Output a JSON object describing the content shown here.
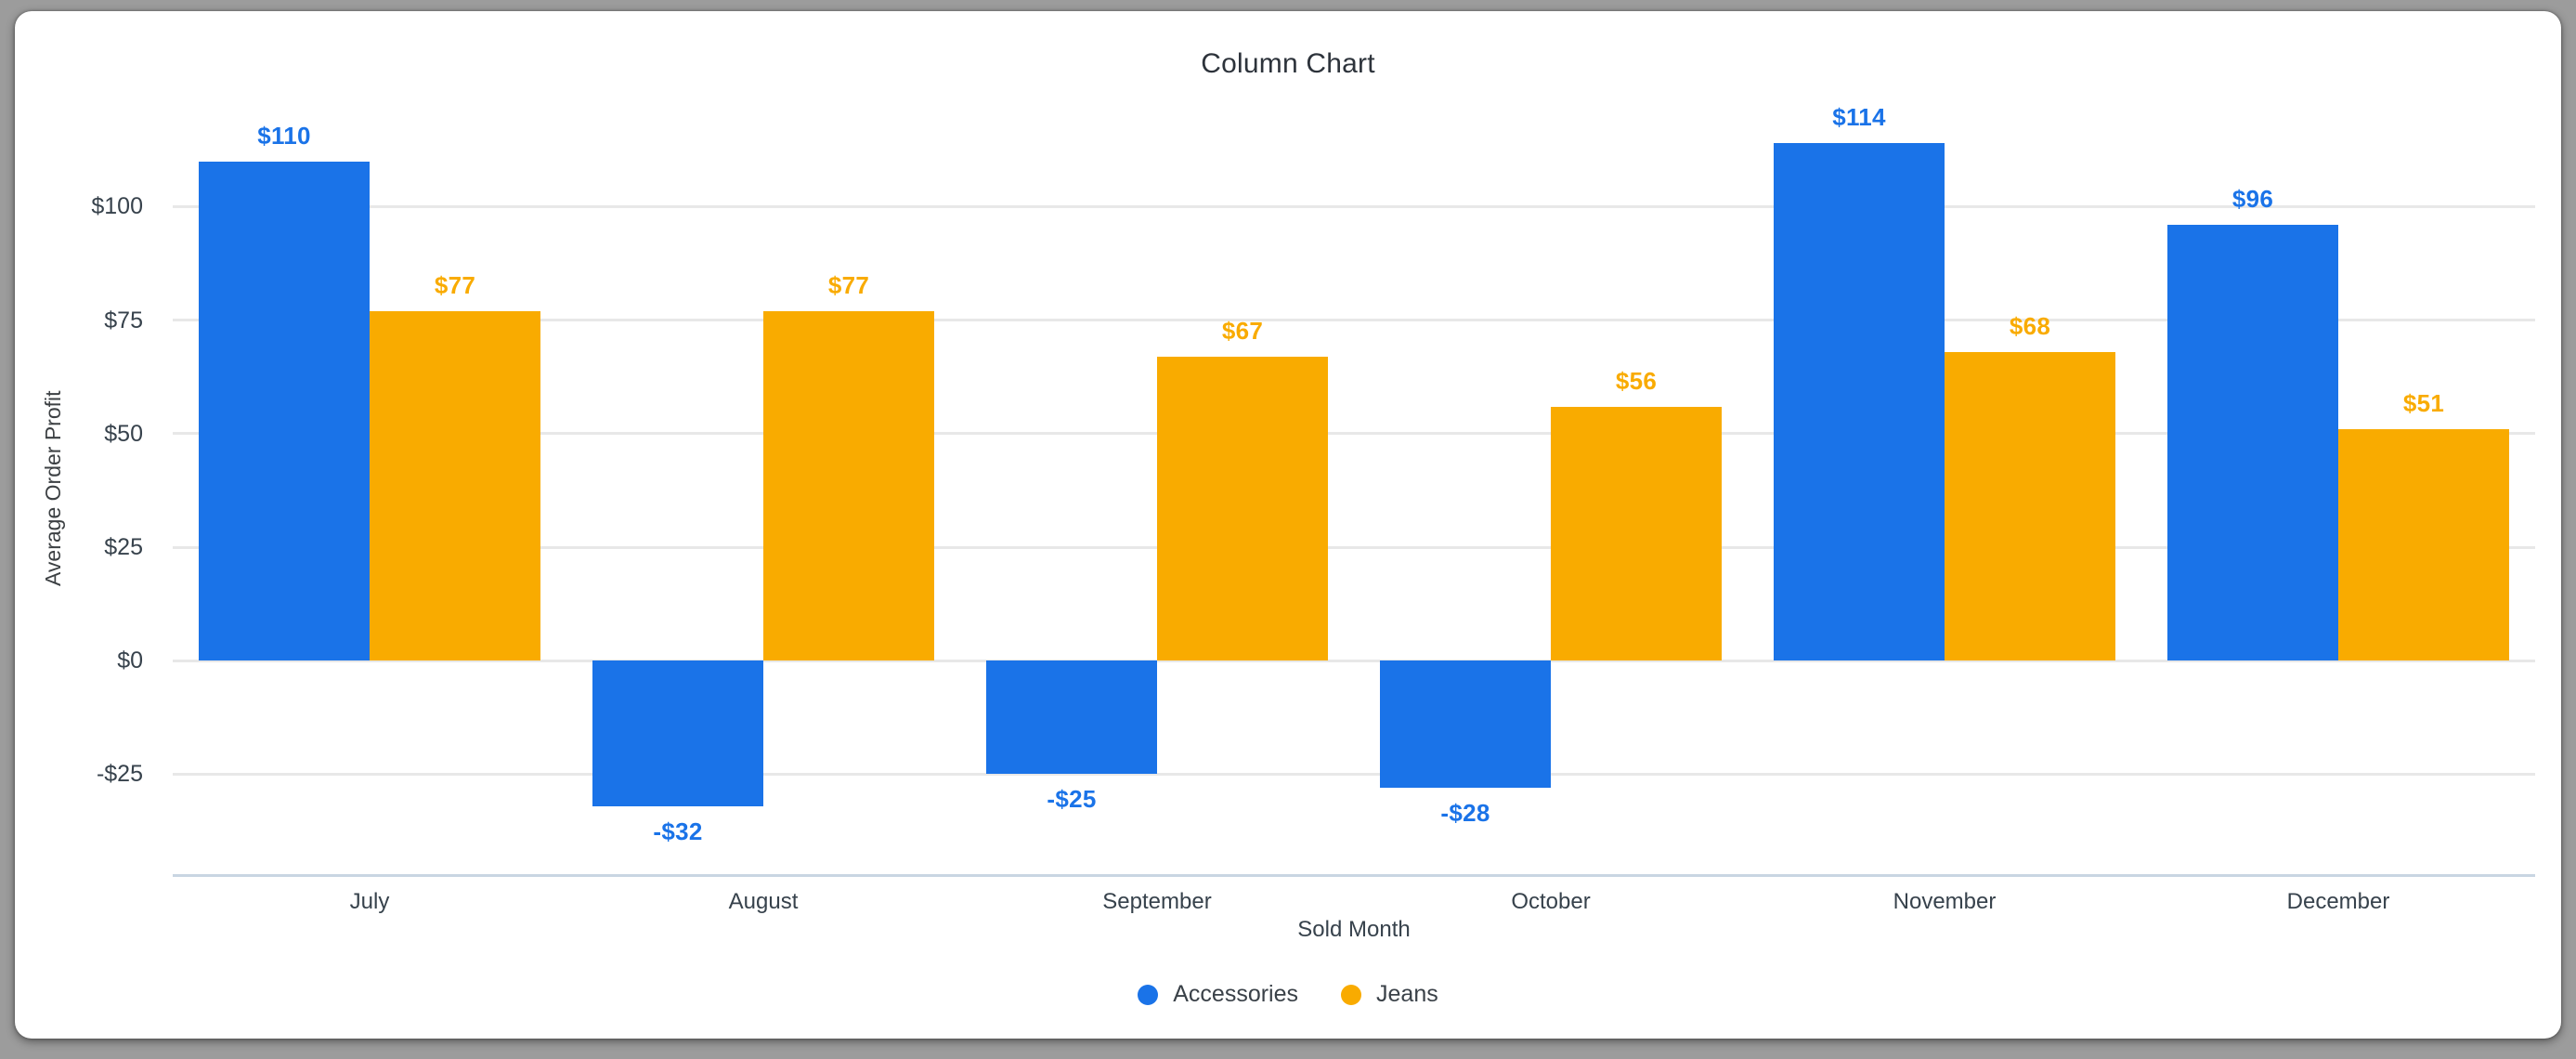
{
  "title": "Column Chart",
  "y_axis": {
    "title": "Average Order Profit",
    "tick_labels": [
      "$100",
      "$75",
      "$50",
      "$25",
      "$0",
      "-$25"
    ]
  },
  "x_axis": {
    "title": "Sold Month"
  },
  "legend": {
    "items": [
      {
        "label": "Accessories",
        "color": "#1a73e8"
      },
      {
        "label": "Jeans",
        "color": "#f9ab00"
      }
    ]
  },
  "chart_data": {
    "type": "bar",
    "title": "Column Chart",
    "xlabel": "Sold Month",
    "ylabel": "Average Order Profit",
    "categories": [
      "July",
      "August",
      "September",
      "October",
      "November",
      "December"
    ],
    "series": [
      {
        "name": "Accessories",
        "color": "#1a73e8",
        "values": [
          110,
          -32,
          -25,
          -28,
          114,
          96
        ],
        "labels": [
          "$110",
          "-$32",
          "-$25",
          "-$28",
          "$114",
          "$96"
        ]
      },
      {
        "name": "Jeans",
        "color": "#f9ab00",
        "values": [
          77,
          77,
          67,
          56,
          68,
          51
        ],
        "labels": [
          "$77",
          "$77",
          "$67",
          "$56",
          "$68",
          "$51"
        ]
      }
    ],
    "yticks": [
      {
        "value": 100,
        "label": "$100"
      },
      {
        "value": 75,
        "label": "$75"
      },
      {
        "value": 50,
        "label": "$50"
      },
      {
        "value": 25,
        "label": "$25"
      },
      {
        "value": 0,
        "label": "$0"
      },
      {
        "value": -25,
        "label": "-$25"
      }
    ],
    "ylim": [
      -47,
      123
    ],
    "grid": true,
    "legend_position": "bottom"
  }
}
